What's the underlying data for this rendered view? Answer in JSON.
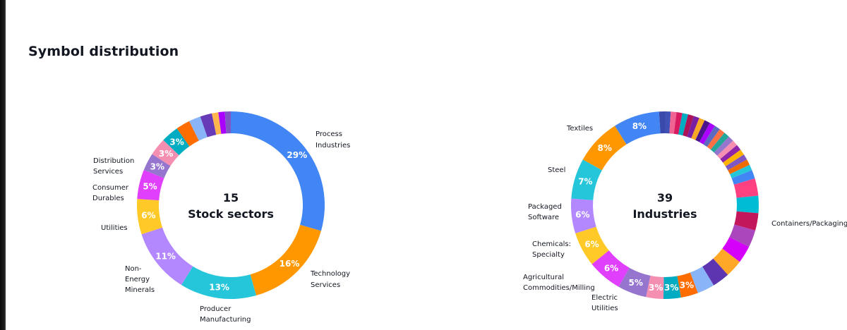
{
  "page": {
    "title": "Symbol distribution"
  },
  "chart_data": [
    {
      "type": "pie",
      "variant": "donut",
      "center_count": "15",
      "center_title": "Stock sectors",
      "slices": [
        {
          "label": "Process Industries",
          "value": 29,
          "color": "#4285F4",
          "show_pct": true
        },
        {
          "label": "Technology Services",
          "value": 16,
          "color": "#FF9800",
          "show_pct": true
        },
        {
          "label": "Producer Manufacturing",
          "value": 13,
          "color": "#26C6DA",
          "show_pct": true
        },
        {
          "label": "Non-Energy Minerals",
          "value": 11,
          "color": "#B388FF",
          "show_pct": true
        },
        {
          "label": "Utilities",
          "value": 6,
          "color": "#FFCA28",
          "show_pct": true
        },
        {
          "label": "Consumer Durables",
          "value": 5,
          "color": "#E040FB",
          "show_pct": true
        },
        {
          "label": "",
          "value": 3,
          "color": "#9575CD",
          "show_pct": true
        },
        {
          "label": "Distribution Services",
          "value": 3,
          "color": "#F48FB1",
          "show_pct": true
        },
        {
          "label": "",
          "value": 3,
          "color": "#00ACC1",
          "show_pct": true
        },
        {
          "label": "",
          "value": 2.4,
          "color": "#FF6D00",
          "show_pct": false
        },
        {
          "label": "",
          "value": 2,
          "color": "#8AB4F8",
          "show_pct": false
        },
        {
          "label": "",
          "value": 2,
          "color": "#673AB7",
          "show_pct": false
        },
        {
          "label": "",
          "value": 1.1,
          "color": "#FFB74D",
          "show_pct": false
        },
        {
          "label": "",
          "value": 1.1,
          "color": "#AA00FF",
          "show_pct": false
        },
        {
          "label": "",
          "value": 1,
          "color": "#7E57C2",
          "show_pct": false
        }
      ]
    },
    {
      "type": "pie",
      "variant": "donut",
      "center_count": "39",
      "center_title": "Industries",
      "slices": [
        {
          "label": "",
          "value": 1.0,
          "color": "#3F51B5",
          "show_pct": false
        },
        {
          "label": "",
          "value": 1.0,
          "color": "#F06292",
          "show_pct": false
        },
        {
          "label": "",
          "value": 1.0,
          "color": "#D81B60",
          "show_pct": false
        },
        {
          "label": "",
          "value": 1.0,
          "color": "#00ACC1",
          "show_pct": false
        },
        {
          "label": "",
          "value": 1.0,
          "color": "#AD1457",
          "show_pct": false
        },
        {
          "label": "",
          "value": 1.0,
          "color": "#7B1FA2",
          "show_pct": false
        },
        {
          "label": "",
          "value": 1.0,
          "color": "#F9A825",
          "show_pct": false
        },
        {
          "label": "",
          "value": 1.0,
          "color": "#4A148C",
          "show_pct": false
        },
        {
          "label": "",
          "value": 1.0,
          "color": "#AA00FF",
          "show_pct": false
        },
        {
          "label": "",
          "value": 1.0,
          "color": "#5C6BC0",
          "show_pct": false
        },
        {
          "label": "",
          "value": 1.0,
          "color": "#FF7043",
          "show_pct": false
        },
        {
          "label": "",
          "value": 1.0,
          "color": "#26A69A",
          "show_pct": false
        },
        {
          "label": "",
          "value": 1.0,
          "color": "#9575CD",
          "show_pct": false
        },
        {
          "label": "",
          "value": 1.0,
          "color": "#F48FB1",
          "show_pct": false
        },
        {
          "label": "",
          "value": 1.0,
          "color": "#8E24AA",
          "show_pct": false
        },
        {
          "label": "",
          "value": 1.0,
          "color": "#FFB300",
          "show_pct": false
        },
        {
          "label": "",
          "value": 1.0,
          "color": "#7E57C2",
          "show_pct": false
        },
        {
          "label": "",
          "value": 1.0,
          "color": "#EF6C00",
          "show_pct": false
        },
        {
          "label": "",
          "value": 1.0,
          "color": "#26C6DA",
          "show_pct": false
        },
        {
          "label": "",
          "value": 1.5,
          "color": "#4285F4",
          "show_pct": false
        },
        {
          "label": "Containers/Packaging",
          "value": 3,
          "color": "#FF4081",
          "show_pct": false
        },
        {
          "label": "",
          "value": 3,
          "color": "#00BCD4",
          "show_pct": false
        },
        {
          "label": "",
          "value": 3,
          "color": "#C2185B",
          "show_pct": false
        },
        {
          "label": "",
          "value": 3,
          "color": "#AB47BC",
          "show_pct": false
        },
        {
          "label": "",
          "value": 3,
          "color": "#D500F9",
          "show_pct": false
        },
        {
          "label": "",
          "value": 3,
          "color": "#FFA726",
          "show_pct": false
        },
        {
          "label": "",
          "value": 3,
          "color": "#5E35B1",
          "show_pct": false
        },
        {
          "label": "",
          "value": 3,
          "color": "#8AB4F8",
          "show_pct": false
        },
        {
          "label": "",
          "value": 3,
          "color": "#FF6D00",
          "show_pct": true
        },
        {
          "label": "",
          "value": 3,
          "color": "#00ACC1",
          "show_pct": true
        },
        {
          "label": "",
          "value": 3,
          "color": "#F48FB1",
          "show_pct": true
        },
        {
          "label": "Electric Utilities",
          "value": 5,
          "color": "#9575CD",
          "show_pct": true
        },
        {
          "label": "Agricultural Commodities/Milling",
          "value": 6,
          "color": "#E040FB",
          "show_pct": true
        },
        {
          "label": "Chemicals: Specialty",
          "value": 6,
          "color": "#FFCA28",
          "show_pct": true
        },
        {
          "label": "Packaged Software",
          "value": 6,
          "color": "#B388FF",
          "show_pct": true
        },
        {
          "label": "Steel",
          "value": 7,
          "color": "#26C6DA",
          "show_pct": true
        },
        {
          "label": "Textiles",
          "value": 8,
          "color": "#FF9800",
          "show_pct": true
        },
        {
          "label": "",
          "value": 8,
          "color": "#4285F4",
          "show_pct": true
        },
        {
          "label": "",
          "value": 1.0,
          "color": "#3949AB",
          "show_pct": false
        }
      ]
    }
  ]
}
